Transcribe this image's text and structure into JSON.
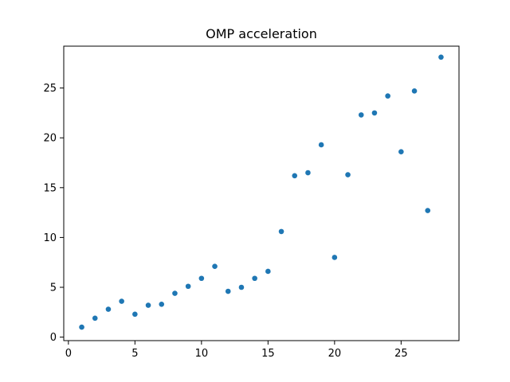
{
  "chart_data": {
    "type": "scatter",
    "title": "OMP acceleration",
    "xlabel": "",
    "ylabel": "",
    "xlim": [
      -0.35,
      29.35
    ],
    "ylim": [
      -0.35,
      29.2
    ],
    "xticks": [
      0,
      5,
      10,
      15,
      20,
      25
    ],
    "yticks": [
      0,
      5,
      10,
      15,
      20,
      25
    ],
    "grid": false,
    "marker_color": "#1f77b4",
    "points": [
      {
        "x": 1,
        "y": 1.0
      },
      {
        "x": 2,
        "y": 1.9
      },
      {
        "x": 3,
        "y": 2.8
      },
      {
        "x": 4,
        "y": 3.6
      },
      {
        "x": 5,
        "y": 2.3
      },
      {
        "x": 6,
        "y": 3.2
      },
      {
        "x": 7,
        "y": 3.3
      },
      {
        "x": 8,
        "y": 4.4
      },
      {
        "x": 9,
        "y": 5.1
      },
      {
        "x": 10,
        "y": 5.9
      },
      {
        "x": 11,
        "y": 7.1
      },
      {
        "x": 12,
        "y": 4.6
      },
      {
        "x": 13,
        "y": 5.0
      },
      {
        "x": 14,
        "y": 5.9
      },
      {
        "x": 15,
        "y": 6.6
      },
      {
        "x": 16,
        "y": 10.6
      },
      {
        "x": 17,
        "y": 16.2
      },
      {
        "x": 18,
        "y": 16.5
      },
      {
        "x": 19,
        "y": 19.3
      },
      {
        "x": 20,
        "y": 8.0
      },
      {
        "x": 21,
        "y": 16.3
      },
      {
        "x": 22,
        "y": 22.3
      },
      {
        "x": 23,
        "y": 22.5
      },
      {
        "x": 24,
        "y": 24.2
      },
      {
        "x": 25,
        "y": 18.6
      },
      {
        "x": 26,
        "y": 24.7
      },
      {
        "x": 27,
        "y": 12.7
      },
      {
        "x": 28,
        "y": 28.1
      }
    ]
  }
}
